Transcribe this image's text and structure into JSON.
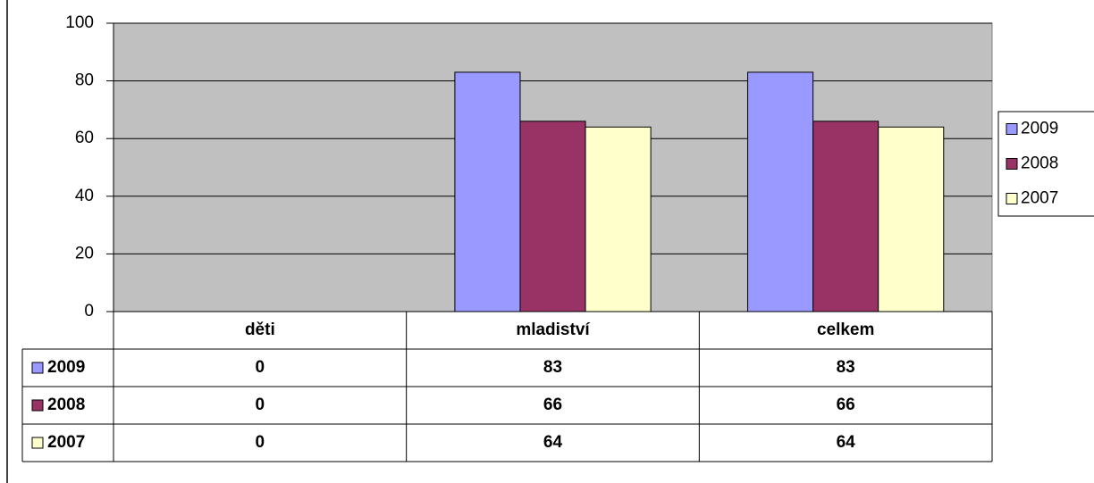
{
  "chart_data": {
    "type": "bar",
    "categories": [
      "děti",
      "mladiství",
      "celkem"
    ],
    "series": [
      {
        "name": "2009",
        "color": "#9999ff",
        "values": [
          0,
          83,
          83
        ]
      },
      {
        "name": "2008",
        "color": "#993366",
        "values": [
          0,
          66,
          66
        ]
      },
      {
        "name": "2007",
        "color": "#ffffcc",
        "values": [
          0,
          64,
          64
        ]
      }
    ],
    "ylim": [
      0,
      100
    ],
    "yticks": [
      0,
      20,
      40,
      60,
      80,
      100
    ],
    "grid": true,
    "plot_background": "#c0c0c0",
    "legend": "right",
    "data_table": true
  }
}
